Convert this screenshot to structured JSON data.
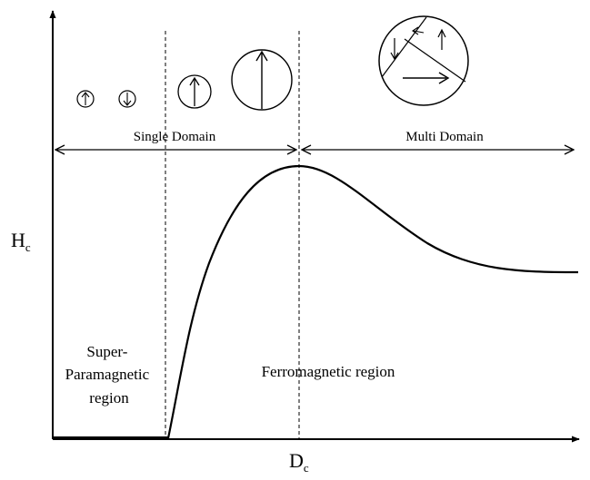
{
  "axes": {
    "y_label": {
      "main": "H",
      "sub": "c"
    },
    "x_label": {
      "main": "D",
      "sub": "c"
    }
  },
  "domains": {
    "single": "Single Domain",
    "multi": "Multi Domain"
  },
  "regions": {
    "superparamagnetic": [
      "Super-",
      "Paramagnetic",
      "region"
    ],
    "ferromagnetic": "Ferromagnetic region"
  },
  "colors": {
    "ink": "#000000",
    "background": "#ffffff"
  },
  "icons": [
    "small-particle-up-arrow-icon",
    "small-particle-down-arrow-icon",
    "medium-particle-up-arrow-icon",
    "large-particle-up-arrow-icon",
    "multi-domain-particle-icon"
  ]
}
